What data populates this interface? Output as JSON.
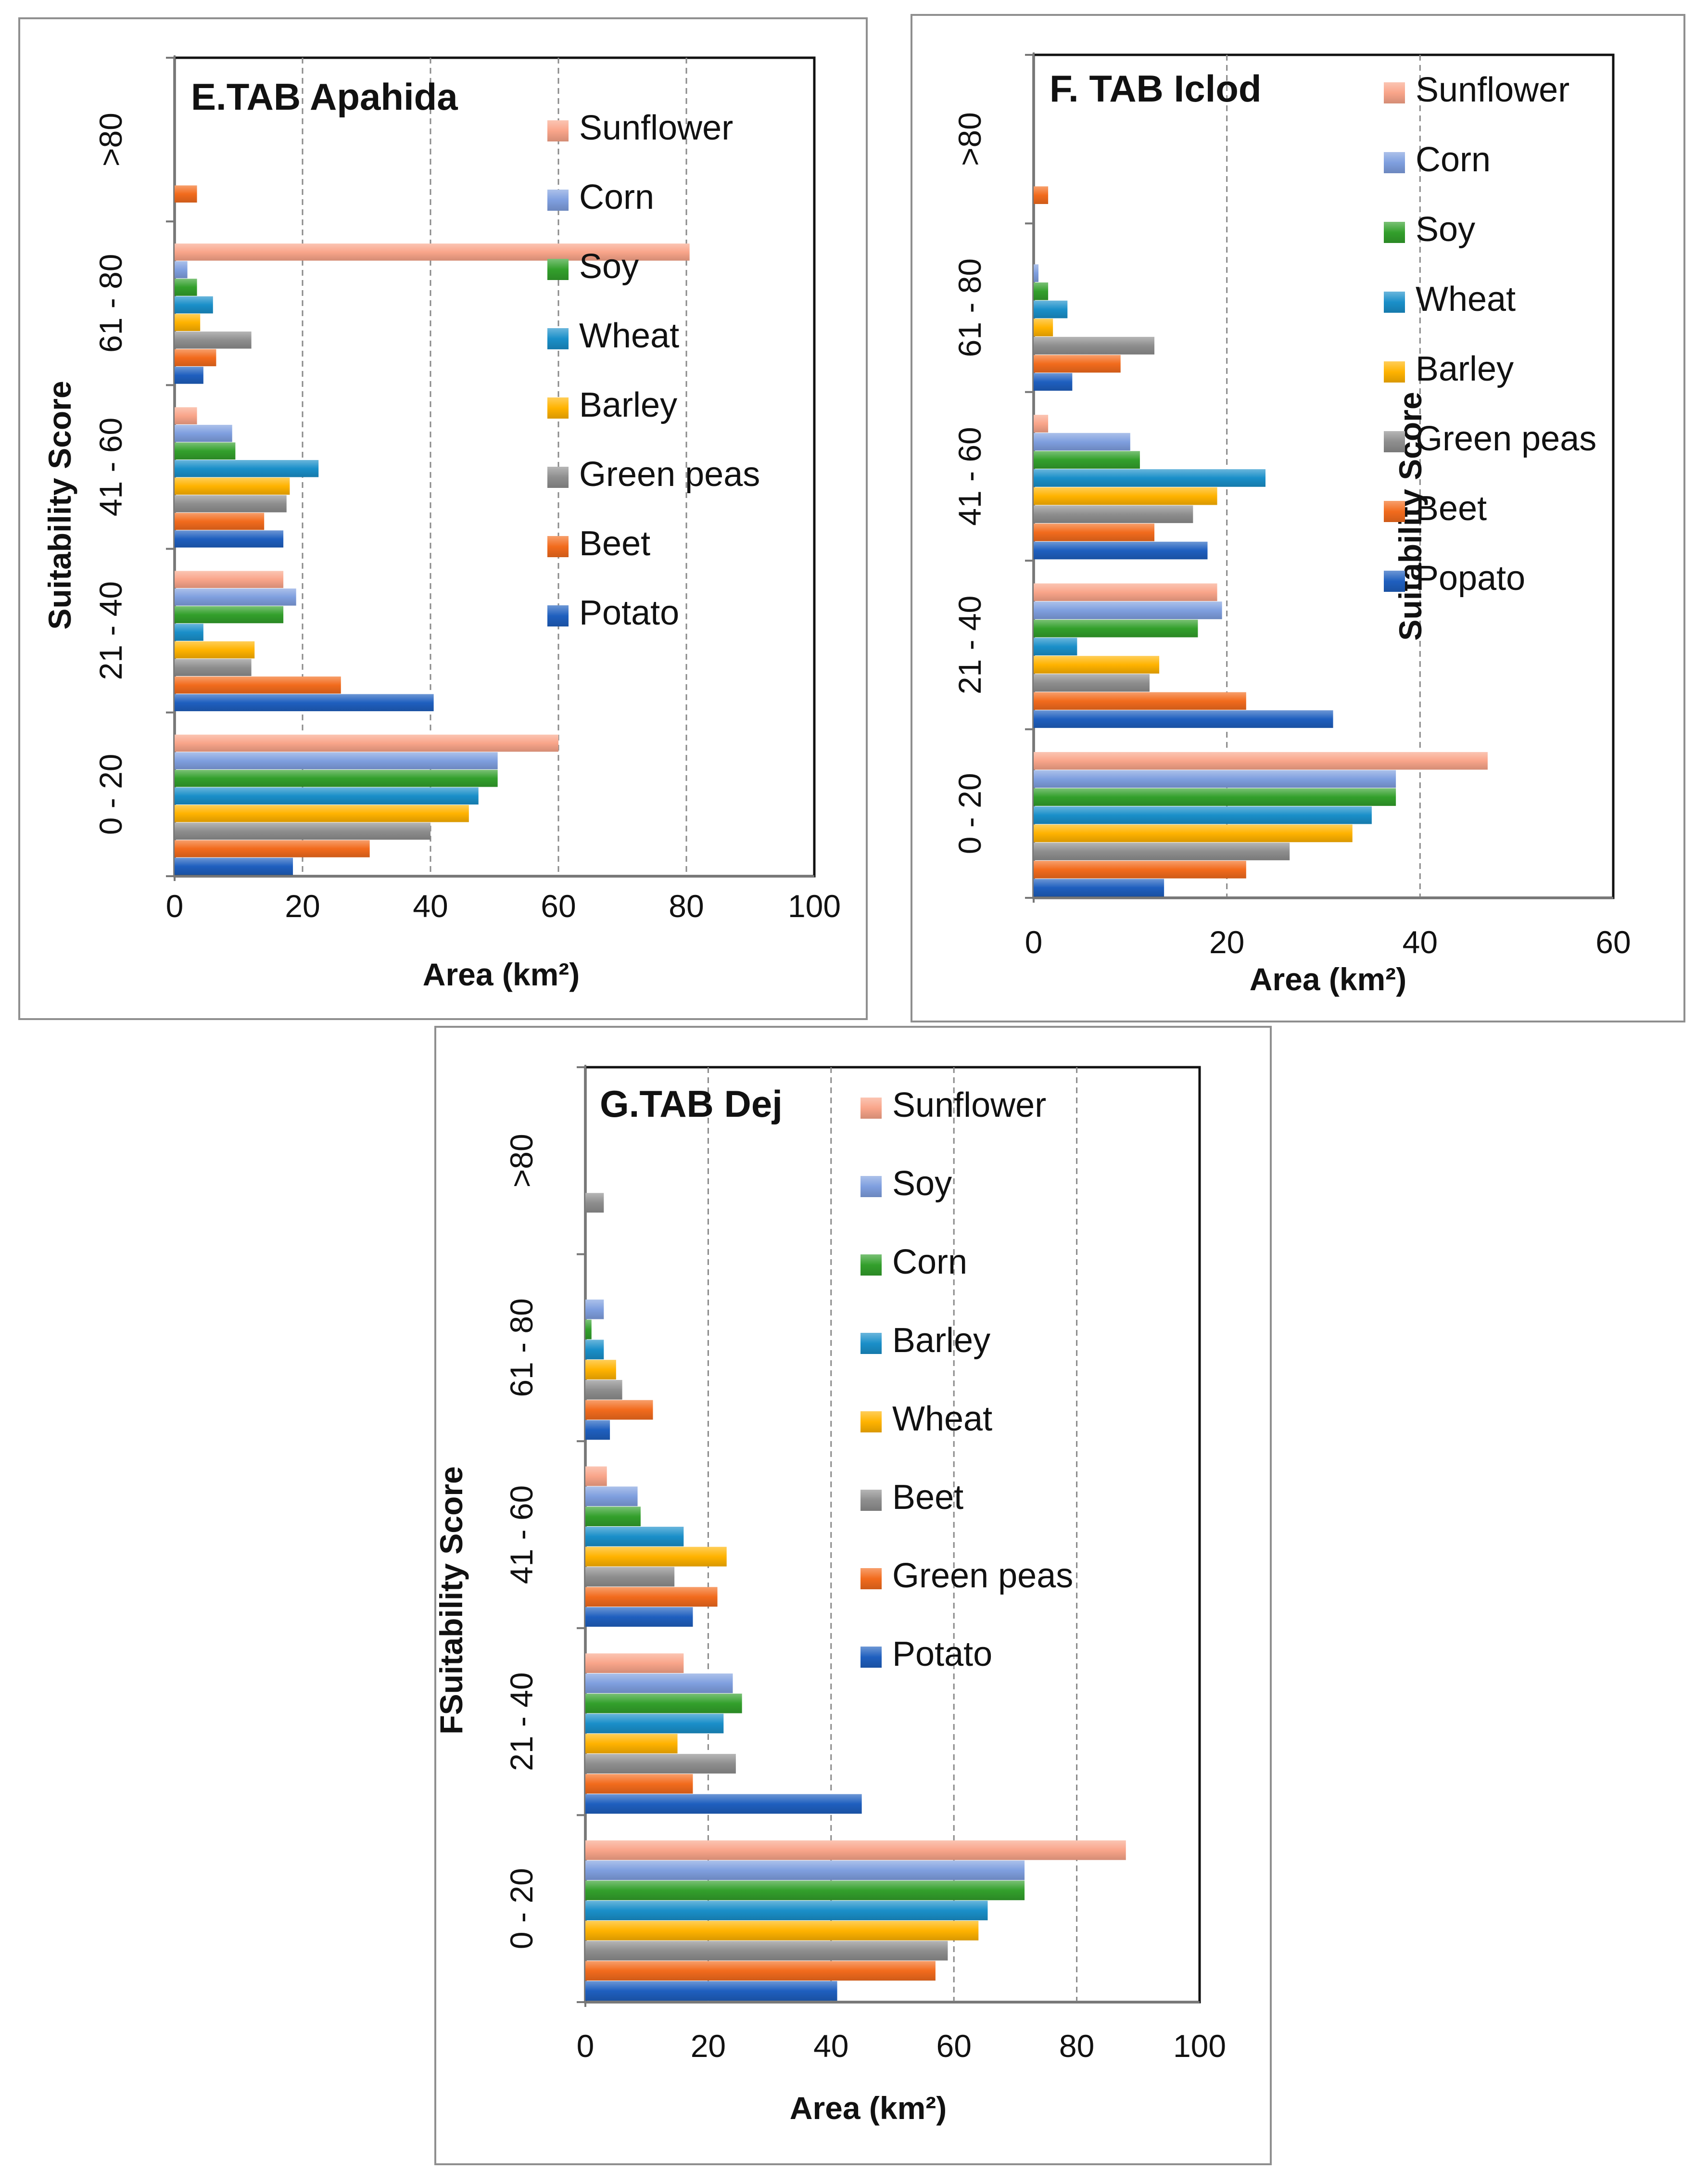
{
  "chart_data": [
    {
      "id": "E",
      "type": "bar",
      "orientation": "horizontal",
      "title": "E.TAB Apahida",
      "xlabel": "Area (km²)",
      "ylabel": "Suitability  Score",
      "xlim": [
        0,
        100
      ],
      "xticks": [
        "0",
        "20",
        "40",
        "60",
        "80",
        "100"
      ],
      "categories": [
        "0 - 20",
        "21 - 40",
        "41 - 60",
        "61 - 80",
        ">80"
      ],
      "legend_position": "right",
      "series": [
        {
          "name": "Potato",
          "color": "#1f5fbf",
          "values": [
            18.5,
            40.5,
            17,
            4.5,
            0
          ]
        },
        {
          "name": "Beet",
          "color": "#f26b1d",
          "values": [
            30.5,
            26,
            14,
            6.5,
            3.5
          ]
        },
        {
          "name": "Green peas",
          "color": "#8e8e8e",
          "values": [
            40,
            12,
            17.5,
            12,
            0
          ]
        },
        {
          "name": "Barley",
          "color": "#ffb300",
          "values": [
            46,
            12.5,
            18,
            4,
            0
          ]
        },
        {
          "name": "Wheat",
          "color": "#1a8fc9",
          "values": [
            47.5,
            4.5,
            22.5,
            6,
            0
          ]
        },
        {
          "name": "Soy",
          "color": "#33a02c",
          "values": [
            50.5,
            17,
            9.5,
            3.5,
            0
          ]
        },
        {
          "name": "Corn",
          "color": "#7f9fdf",
          "values": [
            50.5,
            19,
            9,
            2,
            0
          ]
        },
        {
          "name": "Sunflower",
          "color": "#f9a58a",
          "values": [
            60,
            17,
            3.5,
            80.5,
            0
          ]
        }
      ],
      "legend_order": [
        "Sunflower",
        "Corn",
        "Soy",
        "Wheat",
        "Barley",
        "Green peas",
        "Beet",
        "Potato"
      ]
    },
    {
      "id": "F",
      "type": "bar",
      "orientation": "horizontal",
      "title": "F. TAB Iclod",
      "xlabel": "Area (km²)",
      "ylabel": "Suitability  Score",
      "xlim": [
        0,
        60
      ],
      "xticks": [
        "0",
        "20",
        "40",
        "60"
      ],
      "categories": [
        "0 - 20",
        "21 - 40",
        "41 - 60",
        "61 - 80",
        ">80"
      ],
      "legend_position": "right",
      "series": [
        {
          "name": "Popato",
          "color": "#1f5fbf",
          "values": [
            13.5,
            31,
            18,
            4,
            0
          ]
        },
        {
          "name": "Beet",
          "color": "#f26b1d",
          "values": [
            22,
            22,
            12.5,
            9,
            1.5
          ]
        },
        {
          "name": "Green peas",
          "color": "#8e8e8e",
          "values": [
            26.5,
            12,
            16.5,
            12.5,
            0
          ]
        },
        {
          "name": "Barley",
          "color": "#ffb300",
          "values": [
            33,
            13,
            19,
            2,
            0
          ]
        },
        {
          "name": "Wheat",
          "color": "#1a8fc9",
          "values": [
            35,
            4.5,
            24,
            3.5,
            0
          ]
        },
        {
          "name": "Soy",
          "color": "#33a02c",
          "values": [
            37.5,
            17,
            11,
            1.5,
            0
          ]
        },
        {
          "name": "Corn",
          "color": "#7f9fdf",
          "values": [
            37.5,
            19.5,
            10,
            0.5,
            0
          ]
        },
        {
          "name": "Sunflower",
          "color": "#f9a58a",
          "values": [
            47,
            19,
            1.5,
            0,
            0
          ]
        }
      ],
      "legend_order": [
        "Sunflower",
        "Corn",
        "Soy",
        "Wheat",
        "Barley",
        "Green peas",
        "Beet",
        "Popato"
      ]
    },
    {
      "id": "G",
      "type": "bar",
      "orientation": "horizontal",
      "title": "G.TAB Dej",
      "xlabel": "Area (km²)",
      "ylabel": "FSuitability Score",
      "xlim": [
        0,
        100
      ],
      "xticks": [
        "0",
        "20",
        "40",
        "60",
        "80",
        "100"
      ],
      "categories": [
        "0 - 20",
        "21 - 40",
        "41 - 60",
        "61 - 80",
        ">80"
      ],
      "legend_position": "right",
      "series": [
        {
          "name": "Potato",
          "color": "#1f5fbf",
          "values": [
            41,
            45,
            17.5,
            4,
            0
          ]
        },
        {
          "name": "Green peas",
          "color": "#f26b1d",
          "values": [
            57,
            17.5,
            21.5,
            11,
            0
          ]
        },
        {
          "name": "Beet",
          "color": "#8e8e8e",
          "values": [
            59,
            24.5,
            14.5,
            6,
            3
          ]
        },
        {
          "name": "Wheat",
          "color": "#ffb300",
          "values": [
            64,
            15,
            23,
            5,
            0
          ]
        },
        {
          "name": "Barley",
          "color": "#1a8fc9",
          "values": [
            65.5,
            22.5,
            16,
            3,
            0
          ]
        },
        {
          "name": "Corn",
          "color": "#33a02c",
          "values": [
            71.5,
            25.5,
            9,
            1,
            0
          ]
        },
        {
          "name": "Soy",
          "color": "#7f9fdf",
          "values": [
            71.5,
            24,
            8.5,
            3,
            0
          ]
        },
        {
          "name": "Sunflower",
          "color": "#f9a58a",
          "values": [
            88,
            16,
            3.5,
            0,
            0
          ]
        }
      ],
      "legend_order": [
        "Sunflower",
        "Soy",
        "Corn",
        "Barley",
        "Wheat",
        "Beet",
        "Green peas",
        "Potato"
      ]
    }
  ]
}
